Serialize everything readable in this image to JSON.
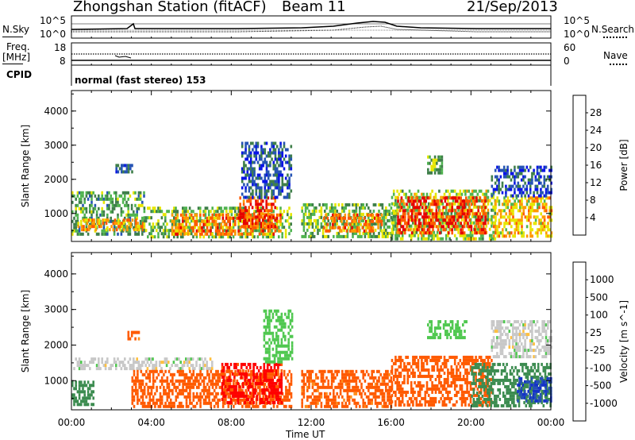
{
  "header": {
    "station": "Zhongshan Station (fitACF)",
    "beam": "Beam 11",
    "date": "21/Sep/2013"
  },
  "noise_panel": {
    "left_label": "N.Sky",
    "right_label": "N.Search",
    "left_ticks": [
      "10^5",
      "10^0"
    ],
    "right_ticks": [
      "10^5",
      "10^0"
    ]
  },
  "freq_panel": {
    "left_label_line1": "Freq.",
    "left_label_line2": "[MHz]",
    "right_label": "Nave",
    "left_ticks": [
      "18",
      "8"
    ],
    "right_ticks": [
      "60",
      "0"
    ]
  },
  "cpid": {
    "label": "CPID",
    "text": "normal (fast stereo) 153"
  },
  "x_axis": {
    "label": "Time UT",
    "ticks": [
      "00:00",
      "04:00",
      "08:00",
      "12:00",
      "16:00",
      "20:00",
      "00:00"
    ]
  },
  "colors": {
    "power_scale": [
      "#0a14e6",
      "#2654b4",
      "#3f7f4a",
      "#50b450",
      "#e6e600",
      "#ff9900",
      "#ff5a00",
      "#e60000"
    ],
    "velocity_scale": [
      "#ff0000",
      "#ff5a00",
      "#ff8c1a",
      "#ffc040",
      "#c8c8c8",
      "#50c850",
      "#3c8c50",
      "#2650b4",
      "#1432c8"
    ]
  },
  "chart_data": [
    {
      "type": "heatmap",
      "title": "",
      "xlabel": "Time UT",
      "ylabel": "Slant Range [km]",
      "xlim": [
        0,
        24
      ],
      "ylim": [
        180,
        4600
      ],
      "yticks": [
        "1000",
        "2000",
        "3000",
        "4000"
      ],
      "colorbar_label": "Power [dB]",
      "colorbar_ticks": [
        "4",
        "8",
        "12",
        "16",
        "20",
        "24",
        "28"
      ],
      "colorbar_range": [
        0,
        32
      ],
      "echo_regions": [
        {
          "t": [
            0.0,
            3.6
          ],
          "r": [
            350,
            1650
          ],
          "value": 12
        },
        {
          "t": [
            0.3,
            3.6
          ],
          "r": [
            500,
            850
          ],
          "value": 22
        },
        {
          "t": [
            2.2,
            3.0
          ],
          "r": [
            2200,
            2450
          ],
          "value": 6
        },
        {
          "t": [
            3.6,
            11.0
          ],
          "r": [
            300,
            1200
          ],
          "value": 14
        },
        {
          "t": [
            5.0,
            10.5
          ],
          "r": [
            400,
            1000
          ],
          "value": 24
        },
        {
          "t": [
            8.4,
            10.2
          ],
          "r": [
            600,
            1500
          ],
          "value": 28
        },
        {
          "t": [
            8.5,
            11.0
          ],
          "r": [
            1500,
            3100
          ],
          "value": 6
        },
        {
          "t": [
            11.5,
            16.3
          ],
          "r": [
            300,
            1300
          ],
          "value": 14
        },
        {
          "t": [
            12.6,
            15.5
          ],
          "r": [
            500,
            1000
          ],
          "value": 24
        },
        {
          "t": [
            16.0,
            21.2
          ],
          "r": [
            300,
            1700
          ],
          "value": 16
        },
        {
          "t": [
            16.3,
            20.7
          ],
          "r": [
            400,
            1500
          ],
          "value": 28
        },
        {
          "t": [
            17.8,
            18.5
          ],
          "r": [
            2200,
            2700
          ],
          "value": 14
        },
        {
          "t": [
            21.1,
            24.0
          ],
          "r": [
            300,
            1500
          ],
          "value": 20
        },
        {
          "t": [
            21.0,
            24.0
          ],
          "r": [
            1500,
            2400
          ],
          "value": 6
        }
      ]
    },
    {
      "type": "heatmap",
      "title": "",
      "xlabel": "Time UT",
      "ylabel": "Slant Range [km]",
      "xlim": [
        0,
        24
      ],
      "ylim": [
        180,
        4600
      ],
      "yticks": [
        "1000",
        "2000",
        "3000",
        "4000"
      ],
      "colorbar_label": "Velocity [m s^-1]",
      "colorbar_ticks": [
        "1000",
        "500",
        "100",
        "25",
        "-25",
        "-100",
        "-500",
        "-1000"
      ],
      "colorbar_range": [
        -1000,
        1000
      ],
      "echo_regions": [
        {
          "t": [
            0.0,
            1.1
          ],
          "r": [
            350,
            1000
          ],
          "value": 300
        },
        {
          "t": [
            0.0,
            7.0
          ],
          "r": [
            1300,
            1650
          ],
          "value": 0
        },
        {
          "t": [
            2.8,
            3.4
          ],
          "r": [
            2200,
            2400
          ],
          "value": -150
        },
        {
          "t": [
            3.0,
            11.0
          ],
          "r": [
            300,
            1300
          ],
          "value": -300
        },
        {
          "t": [
            7.5,
            10.5
          ],
          "r": [
            400,
            1500
          ],
          "value": -700
        },
        {
          "t": [
            9.6,
            11.0
          ],
          "r": [
            1500,
            3000
          ],
          "value": 60
        },
        {
          "t": [
            11.5,
            16.0
          ],
          "r": [
            300,
            1300
          ],
          "value": -150
        },
        {
          "t": [
            16.0,
            21.0
          ],
          "r": [
            300,
            1700
          ],
          "value": -200
        },
        {
          "t": [
            17.8,
            19.8
          ],
          "r": [
            2200,
            2700
          ],
          "value": 60
        },
        {
          "t": [
            20.0,
            24.0
          ],
          "r": [
            300,
            1500
          ],
          "value": 300
        },
        {
          "t": [
            22.3,
            24.0
          ],
          "r": [
            400,
            1100
          ],
          "value": 800
        },
        {
          "t": [
            21.0,
            24.0
          ],
          "r": [
            1700,
            2700
          ],
          "value": 0
        }
      ]
    }
  ]
}
